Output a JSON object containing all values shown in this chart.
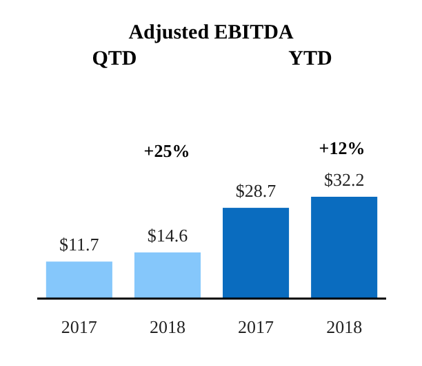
{
  "chart_data": {
    "type": "bar",
    "title": "Adjusted EBITDA",
    "categories": [
      "2017",
      "2018",
      "2017",
      "2018"
    ],
    "values": [
      11.7,
      14.6,
      28.7,
      32.2
    ],
    "value_labels": [
      "$11.7",
      "$14.6",
      "$28.7",
      "$32.2"
    ],
    "colors": [
      "#85c7fb",
      "#85c7fb",
      "#0a6cbf",
      "#0a6cbf"
    ],
    "annotations": [
      "QTD",
      "YTD",
      "+25%",
      "+12%"
    ]
  }
}
